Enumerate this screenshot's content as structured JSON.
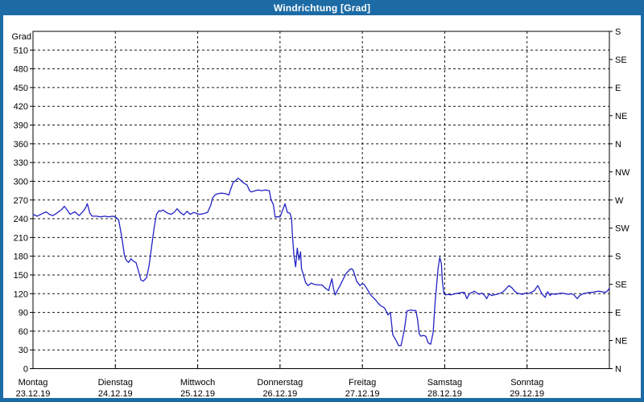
{
  "window": {
    "title": "Windrichtung [Grad]"
  },
  "colors": {
    "titlebar_bg": "#1C6BA5",
    "frame_border": "#1C6BA5",
    "panel_bg": "#FFFFFF",
    "line": "#2222C6",
    "grid": "#000000",
    "text": "#000000",
    "title_text": "#FFFFFF"
  },
  "chart_data": {
    "type": "line",
    "title": "Windrichtung [Grad]",
    "ylabel_left": "Grad",
    "y_axis_left": {
      "min": 0,
      "max": 540,
      "tick_step": 30,
      "tick_labels": [
        "0",
        "30",
        "60",
        "90",
        "120",
        "150",
        "180",
        "210",
        "240",
        "270",
        "300",
        "330",
        "360",
        "390",
        "420",
        "450",
        "480",
        "510"
      ]
    },
    "y_axis_right": {
      "tick_step_deg": 45,
      "labels_bottom_to_top": [
        "N",
        "NE",
        "E",
        "SE",
        "S",
        "SW",
        "W",
        "NW",
        "N",
        "NE",
        "E",
        "SE",
        "S"
      ]
    },
    "x_axis": {
      "days": [
        {
          "name": "Montag",
          "date": "23.12.19"
        },
        {
          "name": "Dienstag",
          "date": "24.12.19"
        },
        {
          "name": "Mittwoch",
          "date": "25.12.19"
        },
        {
          "name": "Donnerstag",
          "date": "26.12.19"
        },
        {
          "name": "Freitag",
          "date": "27.12.19"
        },
        {
          "name": "Samstag",
          "date": "28.12.19"
        },
        {
          "name": "Sonntag",
          "date": "29.12.19"
        }
      ]
    },
    "grid": "dashed",
    "legend": "none",
    "series": [
      {
        "name": "Windrichtung [Grad]",
        "points": [
          [
            0,
            247
          ],
          [
            0.05,
            244
          ],
          [
            0.11,
            248
          ],
          [
            0.16,
            251
          ],
          [
            0.2,
            247
          ],
          [
            0.24,
            245
          ],
          [
            0.28,
            248
          ],
          [
            0.35,
            255
          ],
          [
            0.38,
            260
          ],
          [
            0.42,
            253
          ],
          [
            0.45,
            247
          ],
          [
            0.51,
            251
          ],
          [
            0.56,
            245
          ],
          [
            0.61,
            252
          ],
          [
            0.64,
            258
          ],
          [
            0.66,
            264
          ],
          [
            0.69,
            249
          ],
          [
            0.72,
            244
          ],
          [
            0.77,
            244
          ],
          [
            0.82,
            243
          ],
          [
            0.87,
            244
          ],
          [
            0.92,
            243
          ],
          [
            0.97,
            244
          ],
          [
            1.01,
            242
          ],
          [
            1.04,
            238
          ],
          [
            1.07,
            217
          ],
          [
            1.09,
            200
          ],
          [
            1.11,
            182
          ],
          [
            1.13,
            174
          ],
          [
            1.16,
            170
          ],
          [
            1.19,
            176
          ],
          [
            1.22,
            172
          ],
          [
            1.25,
            170
          ],
          [
            1.28,
            157
          ],
          [
            1.31,
            142
          ],
          [
            1.34,
            140
          ],
          [
            1.38,
            146
          ],
          [
            1.41,
            165
          ],
          [
            1.44,
            195
          ],
          [
            1.47,
            225
          ],
          [
            1.5,
            247
          ],
          [
            1.53,
            253
          ],
          [
            1.55,
            252
          ],
          [
            1.58,
            254
          ],
          [
            1.62,
            250
          ],
          [
            1.65,
            248
          ],
          [
            1.68,
            247
          ],
          [
            1.72,
            251
          ],
          [
            1.75,
            256
          ],
          [
            1.79,
            250
          ],
          [
            1.83,
            246
          ],
          [
            1.87,
            252
          ],
          [
            1.91,
            247
          ],
          [
            1.95,
            250
          ],
          [
            1.98,
            249
          ],
          [
            2.02,
            247
          ],
          [
            2.07,
            248
          ],
          [
            2.12,
            250
          ],
          [
            2.16,
            262
          ],
          [
            2.18,
            273
          ],
          [
            2.21,
            278
          ],
          [
            2.24,
            280
          ],
          [
            2.29,
            281
          ],
          [
            2.34,
            280
          ],
          [
            2.38,
            278
          ],
          [
            2.4,
            287
          ],
          [
            2.43,
            298
          ],
          [
            2.46,
            301
          ],
          [
            2.49,
            305
          ],
          [
            2.52,
            302
          ],
          [
            2.56,
            297
          ],
          [
            2.6,
            294
          ],
          [
            2.63,
            285
          ],
          [
            2.65,
            283
          ],
          [
            2.68,
            284
          ],
          [
            2.73,
            286
          ],
          [
            2.78,
            285
          ],
          [
            2.82,
            286
          ],
          [
            2.87,
            285
          ],
          [
            2.89,
            271
          ],
          [
            2.92,
            262
          ],
          [
            2.94,
            243
          ],
          [
            2.97,
            243
          ],
          [
            3.0,
            243
          ],
          [
            3.03,
            253
          ],
          [
            3.06,
            264
          ],
          [
            3.09,
            250
          ],
          [
            3.12,
            249
          ],
          [
            3.14,
            240
          ],
          [
            3.15,
            215
          ],
          [
            3.17,
            180
          ],
          [
            3.19,
            163
          ],
          [
            3.21,
            193
          ],
          [
            3.23,
            174
          ],
          [
            3.25,
            187
          ],
          [
            3.26,
            160
          ],
          [
            3.28,
            152
          ],
          [
            3.31,
            138
          ],
          [
            3.34,
            133
          ],
          [
            3.38,
            137
          ],
          [
            3.41,
            135
          ],
          [
            3.46,
            134
          ],
          [
            3.51,
            134
          ],
          [
            3.55,
            129
          ],
          [
            3.59,
            125
          ],
          [
            3.63,
            144
          ],
          [
            3.65,
            128
          ],
          [
            3.67,
            118
          ],
          [
            3.7,
            126
          ],
          [
            3.73,
            133
          ],
          [
            3.77,
            144
          ],
          [
            3.8,
            152
          ],
          [
            3.85,
            159
          ],
          [
            3.87,
            160
          ],
          [
            3.89,
            157
          ],
          [
            3.93,
            140
          ],
          [
            3.97,
            133
          ],
          [
            4.0,
            136
          ],
          [
            4.02,
            135
          ],
          [
            4.06,
            127
          ],
          [
            4.1,
            118
          ],
          [
            4.13,
            114
          ],
          [
            4.16,
            110
          ],
          [
            4.19,
            105
          ],
          [
            4.22,
            101
          ],
          [
            4.27,
            97
          ],
          [
            4.31,
            86
          ],
          [
            4.34,
            90
          ],
          [
            4.37,
            54
          ],
          [
            4.41,
            45
          ],
          [
            4.44,
            37
          ],
          [
            4.47,
            37
          ],
          [
            4.51,
            62
          ],
          [
            4.54,
            92
          ],
          [
            4.56,
            93
          ],
          [
            4.59,
            94
          ],
          [
            4.62,
            93
          ],
          [
            4.65,
            93
          ],
          [
            4.67,
            79
          ],
          [
            4.69,
            56
          ],
          [
            4.71,
            52
          ],
          [
            4.74,
            53
          ],
          [
            4.77,
            52
          ],
          [
            4.8,
            41
          ],
          [
            4.83,
            39
          ],
          [
            4.86,
            58
          ],
          [
            4.88,
            101
          ],
          [
            4.9,
            131
          ],
          [
            4.92,
            160
          ],
          [
            4.94,
            178
          ],
          [
            4.96,
            168
          ],
          [
            4.97,
            142
          ],
          [
            4.99,
            120
          ],
          [
            5.01,
            118
          ],
          [
            5.04,
            119
          ],
          [
            5.07,
            118
          ],
          [
            5.1,
            119
          ],
          [
            5.13,
            120
          ],
          [
            5.17,
            121
          ],
          [
            5.21,
            122
          ],
          [
            5.24,
            122
          ],
          [
            5.27,
            112
          ],
          [
            5.3,
            120
          ],
          [
            5.33,
            122
          ],
          [
            5.36,
            124
          ],
          [
            5.39,
            121
          ],
          [
            5.42,
            119
          ],
          [
            5.45,
            121
          ],
          [
            5.48,
            118
          ],
          [
            5.51,
            112
          ],
          [
            5.54,
            120
          ],
          [
            5.57,
            117
          ],
          [
            5.6,
            118
          ],
          [
            5.63,
            119
          ],
          [
            5.66,
            120
          ],
          [
            5.7,
            122
          ],
          [
            5.74,
            127
          ],
          [
            5.78,
            133
          ],
          [
            5.82,
            129
          ],
          [
            5.85,
            124
          ],
          [
            5.88,
            121
          ],
          [
            5.91,
            120
          ],
          [
            5.95,
            119
          ],
          [
            5.98,
            121
          ],
          [
            6.01,
            120
          ],
          [
            6.05,
            122
          ],
          [
            6.09,
            125
          ],
          [
            6.13,
            133
          ],
          [
            6.15,
            128
          ],
          [
            6.18,
            120
          ],
          [
            6.22,
            114
          ],
          [
            6.25,
            123
          ],
          [
            6.28,
            117
          ],
          [
            6.3,
            120
          ],
          [
            6.34,
            119
          ],
          [
            6.38,
            120
          ],
          [
            6.42,
            121
          ],
          [
            6.46,
            120
          ],
          [
            6.5,
            119
          ],
          [
            6.54,
            120
          ],
          [
            6.57,
            118
          ],
          [
            6.61,
            112
          ],
          [
            6.64,
            117
          ],
          [
            6.68,
            120
          ],
          [
            6.72,
            121
          ],
          [
            6.75,
            122
          ],
          [
            6.79,
            122
          ],
          [
            6.83,
            123
          ],
          [
            6.87,
            124
          ],
          [
            6.91,
            123
          ],
          [
            6.95,
            122
          ],
          [
            6.98,
            125
          ],
          [
            7.0,
            129
          ]
        ]
      }
    ]
  }
}
